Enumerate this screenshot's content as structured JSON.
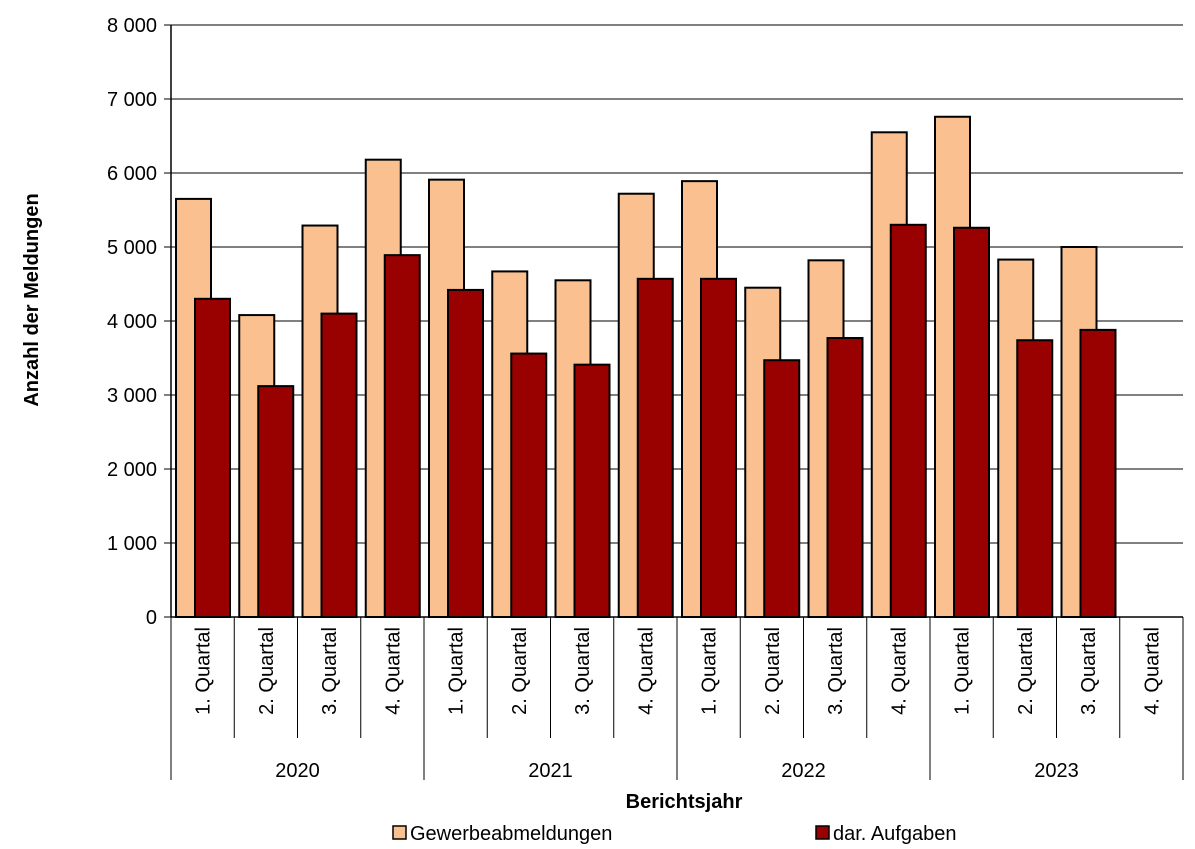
{
  "chart_data": {
    "type": "bar",
    "xlabel": "Berichtsjahr",
    "ylabel": "Anzahl der Meldungen",
    "ylim": [
      0,
      8000
    ],
    "y_ticks": [
      "0",
      "1 000",
      "2 000",
      "3 000",
      "4 000",
      "5 000",
      "6 000",
      "7 000",
      "8 000"
    ],
    "y_tick_values": [
      0,
      1000,
      2000,
      3000,
      4000,
      5000,
      6000,
      7000,
      8000
    ],
    "grid": "horizontal",
    "legend_position": "bottom",
    "categories": [
      "1. Quartal",
      "2. Quartal",
      "3. Quartal",
      "4. Quartal",
      "1. Quartal",
      "2. Quartal",
      "3. Quartal",
      "4. Quartal",
      "1. Quartal",
      "2. Quartal",
      "3. Quartal",
      "4. Quartal",
      "1. Quartal",
      "2. Quartal",
      "3. Quartal",
      "4. Quartal"
    ],
    "groups": [
      {
        "label": "2020",
        "count": 4
      },
      {
        "label": "2021",
        "count": 4
      },
      {
        "label": "2022",
        "count": 4
      },
      {
        "label": "2023",
        "count": 4
      }
    ],
    "series": [
      {
        "name": "Gewerbeabmeldungen",
        "color": "#FAC090",
        "values": [
          5650,
          4080,
          5290,
          6180,
          5910,
          4670,
          4550,
          5720,
          5890,
          4450,
          4820,
          6550,
          6760,
          4830,
          5000,
          null
        ]
      },
      {
        "name": "dar. Aufgaben",
        "color": "#990000",
        "values": [
          4300,
          3120,
          4100,
          4890,
          4420,
          3560,
          3410,
          4570,
          4570,
          3470,
          3770,
          5300,
          5260,
          3740,
          3880,
          null
        ]
      }
    ]
  }
}
